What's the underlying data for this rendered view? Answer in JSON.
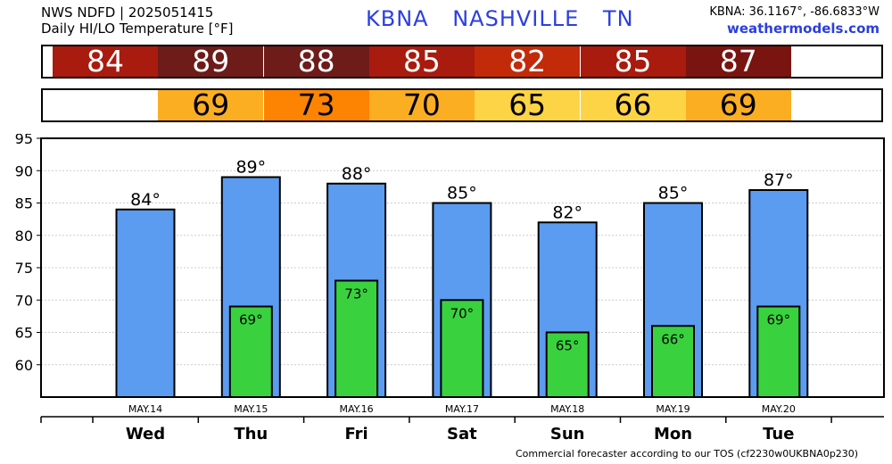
{
  "header": {
    "line1": "NWS NDFD | 2025051415",
    "line2": "Daily HI/LO Temperature [°F]",
    "station": "KBNA",
    "city": "NASHVILLE",
    "state": "TN",
    "coords": "KBNA: 36.1167°, -86.6833°W",
    "site": "weathermodels.com"
  },
  "footer": "Commercial forecaster according to our TOS (cf2230w0UKBNA0p230)",
  "colors": {
    "hi_bar": "#5b9cf0",
    "lo_bar": "#3ad13f",
    "hi_cells": [
      "#a81b0e",
      "#6d1c1a",
      "#6d1c1a",
      "#a81b0e",
      "#c22a0a",
      "#a81b0e",
      "#7a1410"
    ],
    "lo_cells": [
      null,
      "#fbae22",
      "#fd8303",
      "#fbae22",
      "#fdd445",
      "#fdd445",
      "#fbae22"
    ]
  },
  "chart_data": {
    "type": "bar",
    "categories": [
      "Wed",
      "Thu",
      "Fri",
      "Sat",
      "Sun",
      "Mon",
      "Tue"
    ],
    "dates": [
      "MAY.14",
      "MAY.15",
      "MAY.16",
      "MAY.17",
      "MAY.18",
      "MAY.19",
      "MAY.20"
    ],
    "series": [
      {
        "name": "HI",
        "values": [
          84,
          89,
          88,
          85,
          82,
          85,
          87
        ],
        "labels": [
          "84°",
          "89°",
          "88°",
          "85°",
          "82°",
          "85°",
          "87°"
        ],
        "strip": [
          "84",
          "89",
          "88",
          "85",
          "82",
          "85",
          "87"
        ]
      },
      {
        "name": "LO",
        "values": [
          null,
          69,
          73,
          70,
          65,
          66,
          69
        ],
        "labels": [
          "",
          "69°",
          "73°",
          "70°",
          "65°",
          "66°",
          "69°"
        ],
        "strip": [
          "",
          "69",
          "73",
          "70",
          "65",
          "66",
          "69"
        ]
      }
    ],
    "ylim": [
      55,
      95
    ],
    "yticks": [
      60,
      65,
      70,
      75,
      80,
      85,
      90,
      95
    ],
    "grid": true
  }
}
